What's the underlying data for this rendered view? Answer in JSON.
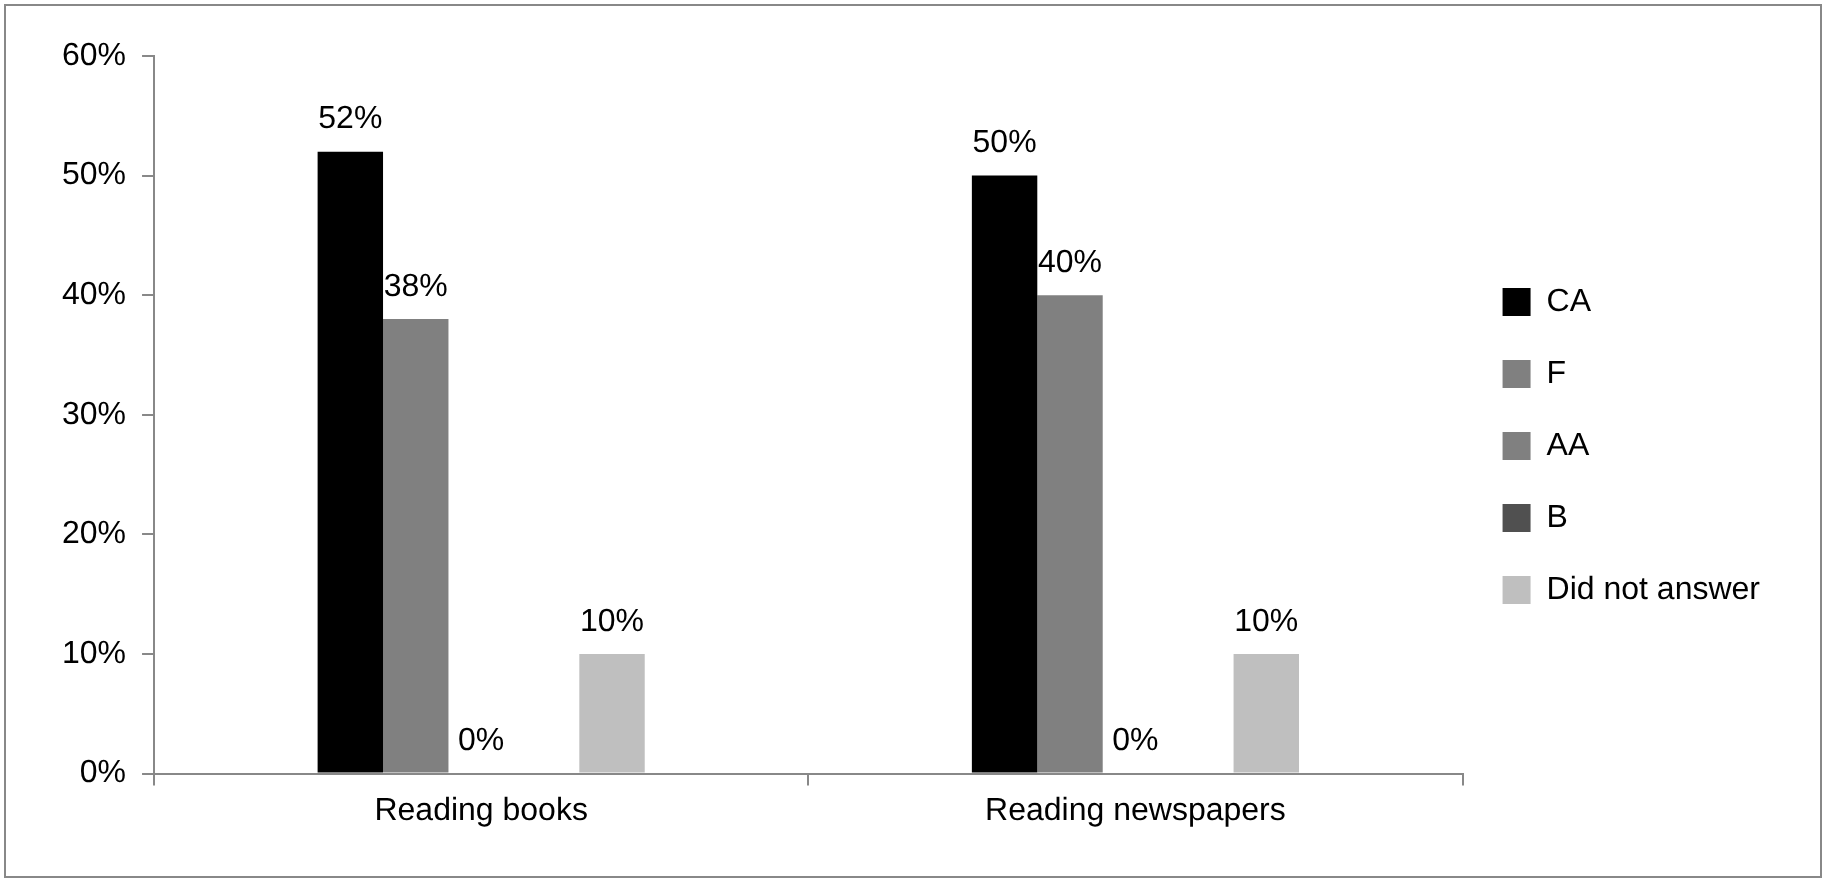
{
  "chart_data": {
    "type": "bar",
    "categories": [
      "Reading books",
      "Reading newspapers"
    ],
    "series": [
      {
        "name": "CA",
        "color": "#000000",
        "values": [
          52,
          50
        ],
        "value_labels": [
          "52%",
          "50%"
        ]
      },
      {
        "name": "F",
        "color": "#808080",
        "values": [
          38,
          40
        ],
        "value_labels": [
          "38%",
          "40%"
        ]
      },
      {
        "name": "AA",
        "color": "#808080",
        "values": [
          0,
          0
        ],
        "value_labels": [
          "0%",
          "0%"
        ]
      },
      {
        "name": "B",
        "color": "#505050",
        "values": [
          null,
          null
        ]
      },
      {
        "name": "Did not answer",
        "color": "#bfbfbf",
        "values": [
          10,
          10
        ],
        "value_labels": [
          "10%",
          "10%"
        ]
      }
    ],
    "ylim": [
      0,
      60
    ],
    "yticks": [
      {
        "value": 0,
        "label": "0%"
      },
      {
        "value": 10,
        "label": "10%"
      },
      {
        "value": 20,
        "label": "20%"
      },
      {
        "value": 30,
        "label": "30%"
      },
      {
        "value": 40,
        "label": "40%"
      },
      {
        "value": 50,
        "label": "50%"
      },
      {
        "value": 60,
        "label": "60%"
      }
    ],
    "grid": false,
    "legend": "right"
  }
}
